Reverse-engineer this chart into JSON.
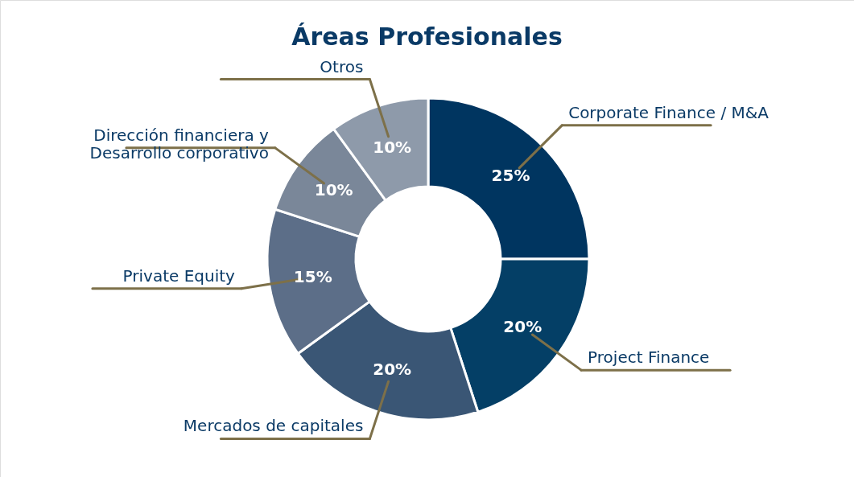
{
  "chart_data": {
    "type": "donut",
    "title": "Áreas Profesionales",
    "categories": [
      "Corporate Finance / M&A",
      "Project Finance",
      "Mercados de capitales",
      "Private Equity",
      "Dirección financiera y\nDesarrollo corporativo",
      "Otros"
    ],
    "values": [
      25,
      20,
      20,
      15,
      10,
      10
    ],
    "colors": [
      "#003560",
      "#043f66",
      "#3a5675",
      "#5c6e88",
      "#7a8799",
      "#8e9aaa"
    ],
    "value_labels": [
      "25%",
      "20%",
      "20%",
      "15%",
      "10%",
      "10%"
    ]
  }
}
